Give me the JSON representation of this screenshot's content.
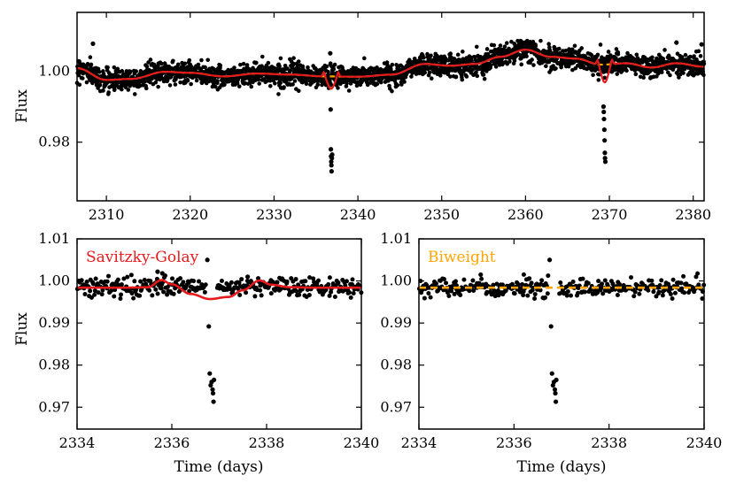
{
  "figure": {
    "title": ""
  },
  "chart_data": [
    {
      "id": "top",
      "type": "scatter",
      "title": "",
      "xlabel": "",
      "ylabel": "Flux",
      "xlim": [
        2306.5,
        2381.3
      ],
      "ylim": [
        0.9635,
        1.0165
      ],
      "xticks": [
        2310,
        2320,
        2330,
        2340,
        2350,
        2360,
        2370,
        2380
      ],
      "yticks": [
        0.98,
        1.0
      ],
      "ytick_labels": [
        "0.98",
        "1.00"
      ],
      "series": [
        {
          "name": "Flux data",
          "kind": "points",
          "color": "#000000",
          "baseline_knots": [
            [
              2306.5,
              1.0008
            ],
            [
              2310,
              0.9975
            ],
            [
              2313,
              0.9978
            ],
            [
              2317,
              0.9998
            ],
            [
              2320,
              0.9995
            ],
            [
              2324,
              0.9985
            ],
            [
              2328,
              0.9993
            ],
            [
              2332,
              0.999
            ],
            [
              2336,
              0.9985
            ],
            [
              2340,
              0.9984
            ],
            [
              2344,
              0.999
            ],
            [
              2348,
              1.002
            ],
            [
              2351,
              1.0015
            ],
            [
              2354,
              1.002
            ],
            [
              2357,
              1.004
            ],
            [
              2360,
              1.006
            ],
            [
              2363,
              1.004
            ],
            [
              2366,
              1.0035
            ],
            [
              2369,
              1.0018
            ],
            [
              2372,
              1.0022
            ],
            [
              2375,
              1.001
            ],
            [
              2378,
              1.0022
            ],
            [
              2381.3,
              1.0012
            ]
          ],
          "scatter_sigma": 0.0015,
          "transits": [
            {
              "center": 2336.87,
              "depth_points": [
                [
                  2336.75,
                  0.9892
                ],
                [
                  2336.78,
                  0.978
                ],
                [
                  2336.8,
                  0.976
                ],
                [
                  2336.82,
                  0.9745
                ],
                [
                  2336.84,
                  0.9735
                ],
                [
                  2336.86,
                  0.9718
                ],
                [
                  2336.9,
                  0.9755
                ],
                [
                  2336.93,
                  0.9765
                ]
              ]
            },
            {
              "center": 2369.45,
              "depth_points": [
                [
                  2369.3,
                  0.99
                ],
                [
                  2369.33,
                  0.9885
                ],
                [
                  2369.36,
                  0.9865
                ],
                [
                  2369.4,
                  0.9835
                ],
                [
                  2369.43,
                  0.9805
                ],
                [
                  2369.46,
                  0.977
                ],
                [
                  2369.48,
                  0.9755
                ],
                [
                  2369.52,
                  0.9745
                ]
              ]
            }
          ],
          "outliers": [
            [
              2308.4,
              1.0077
            ],
            [
              2336.7,
              1.005
            ],
            [
              2378.0,
              1.008
            ],
            [
              2381.0,
              1.0075
            ]
          ]
        },
        {
          "name": "Savitzky-Golay",
          "kind": "line",
          "color": "#e41a1c",
          "dashed": false,
          "dips": [
            {
              "center": 2336.8,
              "depth": 0.0035,
              "width": 0.9
            },
            {
              "center": 2369.45,
              "depth": 0.005,
              "width": 0.9
            }
          ]
        },
        {
          "name": "Biweight",
          "kind": "line",
          "color": "#ffa500",
          "dashed": true,
          "dips": []
        }
      ]
    },
    {
      "id": "bottom-left",
      "type": "scatter",
      "title": "",
      "xlabel": "Time (days)",
      "ylabel": "Flux",
      "xlim": [
        2334,
        2340
      ],
      "ylim": [
        0.9648,
        1.01
      ],
      "xticks": [
        2334,
        2336,
        2338,
        2340
      ],
      "yticks": [
        0.97,
        0.98,
        0.99,
        1.0,
        1.01
      ],
      "ytick_labels": [
        "0.97",
        "0.98",
        "0.99",
        "1.00",
        "1.01"
      ],
      "legend": {
        "text": "Savitzky-Golay",
        "color": "#e41a1c",
        "position": "top-left"
      },
      "series": [
        {
          "name": "Flux data",
          "kind": "points",
          "color": "#000000",
          "baseline": 0.9986,
          "scatter_sigma": 0.0011,
          "transit_points": [
            [
              2336.75,
              1.005
            ],
            [
              2336.78,
              0.9892
            ],
            [
              2336.8,
              0.978
            ],
            [
              2336.82,
              0.9752
            ],
            [
              2336.84,
              0.976
            ],
            [
              2336.86,
              0.9742
            ],
            [
              2336.87,
              0.9733
            ],
            [
              2336.88,
              0.9713
            ],
            [
              2336.89,
              0.9765
            ]
          ],
          "outliers": [
            [
              2335.7,
              1.0022
            ],
            [
              2335.8,
              1.0018
            ],
            [
              2337.6,
              1.001
            ]
          ]
        },
        {
          "name": "Savitzky-Golay",
          "kind": "line",
          "color": "#e41a1c",
          "dashed": false,
          "points": [
            [
              2334,
              0.9984
            ],
            [
              2335,
              0.9984
            ],
            [
              2335.5,
              0.9985
            ],
            [
              2335.78,
              1.0002
            ],
            [
              2336,
              0.9992
            ],
            [
              2336.4,
              0.9969
            ],
            [
              2336.8,
              0.9957
            ],
            [
              2337.2,
              0.9962
            ],
            [
              2337.5,
              0.9978
            ],
            [
              2337.85,
              1.0001
            ],
            [
              2338.1,
              0.9991
            ],
            [
              2338.5,
              0.9985
            ],
            [
              2339,
              0.9984
            ],
            [
              2340,
              0.9984
            ]
          ]
        }
      ]
    },
    {
      "id": "bottom-right",
      "type": "scatter",
      "title": "",
      "xlabel": "Time (days)",
      "ylabel": "",
      "xlim": [
        2334,
        2340
      ],
      "ylim": [
        0.9648,
        1.01
      ],
      "xticks": [
        2334,
        2336,
        2338,
        2340
      ],
      "yticks": [
        0.97,
        0.98,
        0.99,
        1.0,
        1.01
      ],
      "ytick_labels": [
        "0.97",
        "0.98",
        "0.99",
        "1.00",
        "1.01"
      ],
      "legend": {
        "text": "Biweight",
        "color": "#ffa500",
        "position": "top-left"
      },
      "series": [
        {
          "name": "Flux data",
          "kind": "points",
          "color": "#000000",
          "baseline": 0.9983,
          "scatter_sigma": 0.0011,
          "transit_points": [
            [
              2336.75,
              1.005
            ],
            [
              2336.78,
              0.9892
            ],
            [
              2336.8,
              0.978
            ],
            [
              2336.82,
              0.9752
            ],
            [
              2336.84,
              0.976
            ],
            [
              2336.86,
              0.9742
            ],
            [
              2336.87,
              0.9733
            ],
            [
              2336.88,
              0.9713
            ],
            [
              2336.89,
              0.9765
            ]
          ],
          "outliers": [
            [
              2335.3,
              1.0015
            ],
            [
              2335.7,
              0.9988
            ],
            [
              2336.2,
              0.9975
            ]
          ]
        },
        {
          "name": "Biweight",
          "kind": "line",
          "color": "#ffa500",
          "dashed": true,
          "points": [
            [
              2334,
              0.9984
            ],
            [
              2337,
              0.9984
            ],
            [
              2340,
              0.9984
            ]
          ]
        }
      ]
    }
  ]
}
